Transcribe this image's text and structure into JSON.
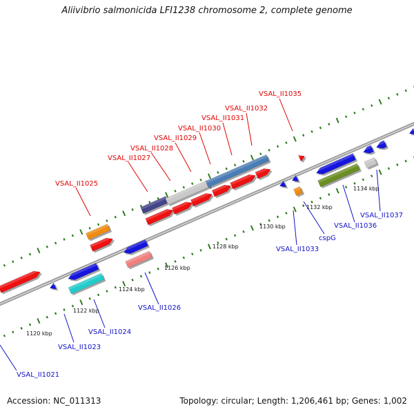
{
  "title": "Aliivibrio salmonicida LFI1238 chromosome 2, complete genome",
  "footer": {
    "accession": "Accession: NC_011313",
    "summary": "Topology: circular; Length: 1,206,461 bp; Genes: 1,002"
  },
  "colors": {
    "backbone": "#9a9a9a",
    "tick_green": "#2e7d1e",
    "label_red": "#e00000",
    "label_blue": "#1010c8",
    "gene_red": "#ee1111",
    "gene_blue": "#1515dd",
    "gene_orange": "#f08c10",
    "gene_cyan": "#22cccc",
    "gene_pink": "#f08080",
    "gene_olive": "#6b8e23",
    "gene_gray": "#c8c8c8",
    "gene_steel": "#4a7db5",
    "gene_navy": "#44448a"
  },
  "kbp_labels": [
    "1120 kbp",
    "1122 kbp",
    "1124 kbp",
    "1126 kbp",
    "1128 kbp",
    "1130 kbp",
    "1132 kbp",
    "1134 kbp"
  ],
  "forward_labels": [
    "VSAL_II1025",
    "VSAL_II1027",
    "VSAL_II1028",
    "VSAL_II1029",
    "VSAL_II1030",
    "VSAL_II1031",
    "VSAL_II1032",
    "VSAL_II1035"
  ],
  "reverse_labels": [
    "VSAL_II1021",
    "VSAL_II1023",
    "VSAL_II1024",
    "VSAL_II1026",
    "VSAL_II1033",
    "cspG",
    "VSAL_II1036",
    "VSAL_II1037"
  ]
}
